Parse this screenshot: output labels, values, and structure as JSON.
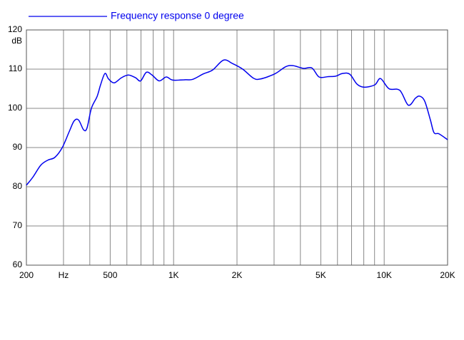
{
  "chart_data": {
    "type": "line",
    "y_label": "dB",
    "log_x": true,
    "grid": true,
    "x": [
      200,
      215,
      234,
      253,
      273,
      296,
      319,
      337,
      354,
      374,
      388,
      407,
      433,
      450,
      472,
      491,
      522,
      565,
      610,
      660,
      697,
      742,
      790,
      854,
      923,
      991,
      1140,
      1233,
      1386,
      1534,
      1725,
      1909,
      2129,
      2393,
      2588,
      3025,
      3401,
      3677,
      4135,
      4538,
      4907,
      5431,
      5873,
      6350,
      6866,
      7424,
      8027,
      9024,
      9605,
      10545,
      11860,
      13020,
      14080,
      14750,
      15580,
      16580,
      17240,
      18210,
      20000
    ],
    "series": [
      {
        "name": "Frequency response 0 degree",
        "color": "#0000ee",
        "values": [
          80.4,
          82.5,
          85.5,
          86.8,
          87.5,
          90,
          94,
          96.8,
          97,
          94.5,
          95,
          100,
          103,
          106,
          108.9,
          107.5,
          106.5,
          107.8,
          108.5,
          107.8,
          107,
          109.2,
          108.5,
          107,
          108,
          107.2,
          107.3,
          107.4,
          108.8,
          109.8,
          112.3,
          111.4,
          110,
          107.7,
          107.5,
          108.8,
          110.6,
          110.9,
          110.2,
          110.3,
          108,
          108.1,
          108.2,
          108.9,
          108.7,
          106.2,
          105.4,
          106,
          107.6,
          105,
          104.6,
          100.8,
          102.6,
          103.1,
          101.8,
          97,
          93.8,
          93.5,
          92
        ]
      }
    ],
    "xlim": [
      200,
      20000
    ],
    "xticks": [
      200,
      {
        "value": 300,
        "label": "Hz"
      },
      500,
      {
        "value": 1000,
        "label": "1K"
      },
      {
        "value": 2000,
        "label": "2K"
      },
      {
        "value": 5000,
        "label": "5K"
      },
      {
        "value": 10000,
        "label": "10K"
      },
      {
        "value": 20000,
        "label": "20K"
      }
    ],
    "x_minor_grid": [
      400,
      600,
      700,
      800,
      900,
      3000,
      4000,
      6000,
      7000,
      8000,
      9000
    ],
    "ylim": [
      60,
      120
    ],
    "yticks": [
      60,
      70,
      80,
      90,
      100,
      110,
      120
    ]
  }
}
